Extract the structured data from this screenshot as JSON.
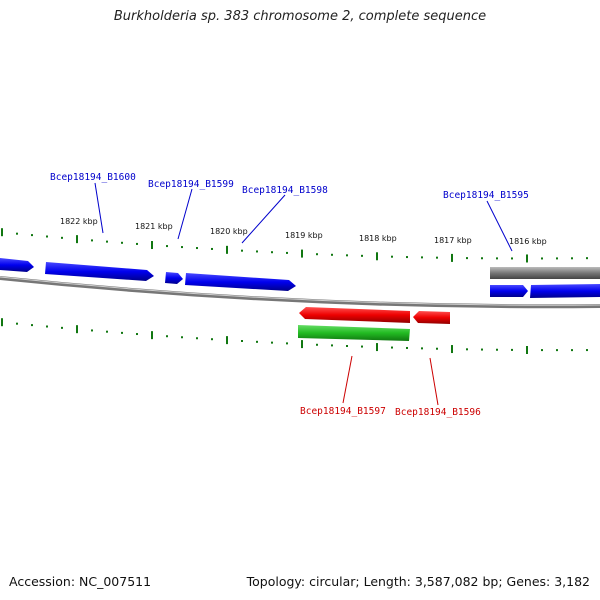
{
  "title": "Burkholderia sp. 383 chromosome 2, complete sequence",
  "footer": {
    "accession": "Accession: NC_007511",
    "summary": "Topology: circular; Length: 3,587,082 bp; Genes: 3,182"
  },
  "colors": {
    "forward_gene": "#0000ee",
    "reverse_gene": "#ee0000",
    "reverse_green": "#22bb22",
    "grey_track": "#777777",
    "ticks": "#117711",
    "label_blue": "#0000cc",
    "label_red": "#cc0000"
  },
  "scale_labels": [
    "1822 kbp",
    "1821 kbp",
    "1820 kbp",
    "1819 kbp",
    "1818 kbp",
    "1817 kbp",
    "1816 kbp"
  ],
  "gene_labels": [
    {
      "text": "Bcep18194_B1600",
      "strand": "forward"
    },
    {
      "text": "Bcep18194_B1599",
      "strand": "forward"
    },
    {
      "text": "Bcep18194_B1598",
      "strand": "forward"
    },
    {
      "text": "Bcep18194_B1595",
      "strand": "forward"
    },
    {
      "text": "Bcep18194_B1597",
      "strand": "reverse"
    },
    {
      "text": "Bcep18194_B1596",
      "strand": "reverse"
    }
  ]
}
